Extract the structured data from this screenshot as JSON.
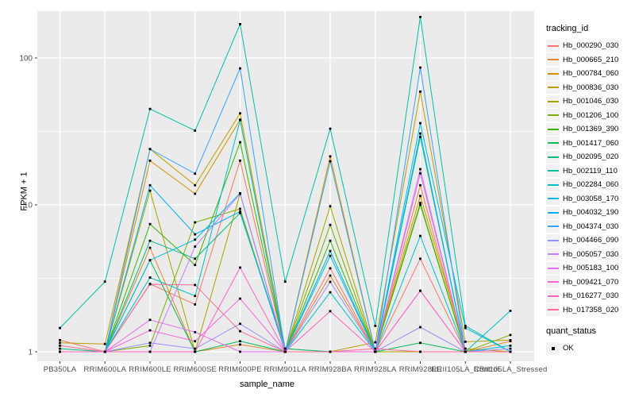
{
  "chart_data": {
    "type": "line",
    "title": "",
    "xlabel": "sample_name",
    "ylabel": "FPKM + 1",
    "y_scale": "log10",
    "y_ticks": [
      1,
      10,
      100
    ],
    "y_minor_ticks": [
      3.162,
      31.62
    ],
    "ylim": [
      0.88,
      208
    ],
    "grid": true,
    "panel_background": "#EBEBEB",
    "grid_color": "#FFFFFF",
    "point_shape": "filled-square",
    "point_color": "#000000",
    "tick_label_color": "#4D4D4D",
    "legend_position": "right",
    "categories": [
      "PB350LA",
      "RRIM600LA",
      "RRIM600LE",
      "RRIM600SE",
      "RRIM600PE",
      "RRIM901LA",
      "RRIM928BA",
      "RRIM928LA",
      "RRIM928LE",
      "RRII105LA_Control",
      "RRII105LA_Stressed"
    ],
    "series": [
      {
        "name": "Hb_000290_030",
        "color": "#F8766D",
        "values": [
          1.2,
          1,
          2.9,
          2.1,
          20,
          1,
          3.7,
          1,
          4.3,
          1,
          1
        ]
      },
      {
        "name": "Hb_000665_210",
        "color": "#EA8331",
        "values": [
          1,
          1,
          5.1,
          1,
          1.12,
          1,
          3.3,
          1,
          13.6,
          1,
          1.18
        ]
      },
      {
        "name": "Hb_000784_060",
        "color": "#D89000",
        "values": [
          1,
          1,
          20,
          11.9,
          38,
          1,
          21.4,
          1,
          11.5,
          1.05,
          1
        ]
      },
      {
        "name": "Hb_000836_030",
        "color": "#C09B00",
        "values": [
          1.15,
          1.13,
          24,
          13.6,
          42,
          1.05,
          1,
          1.16,
          59,
          1.17,
          1.2
        ]
      },
      {
        "name": "Hb_001046_030",
        "color": "#A3A500",
        "values": [
          1,
          1,
          12.5,
          1,
          11.9,
          1,
          9.8,
          1,
          1,
          1,
          1
        ]
      },
      {
        "name": "Hb_001206_100",
        "color": "#7CAE00",
        "values": [
          1,
          1,
          1.1,
          7.6,
          9.4,
          1,
          7.3,
          1,
          10.3,
          1,
          1.3
        ]
      },
      {
        "name": "Hb_001369_390",
        "color": "#39B600",
        "values": [
          1,
          1,
          7.4,
          3.9,
          26.7,
          1,
          5.7,
          1,
          10,
          1,
          1
        ]
      },
      {
        "name": "Hb_001417_060",
        "color": "#00BB4E",
        "values": [
          1,
          1,
          4.2,
          1,
          1.18,
          1,
          1,
          1,
          1.15,
          1,
          1
        ]
      },
      {
        "name": "Hb_002095_020",
        "color": "#00BF7D",
        "values": [
          1.05,
          1,
          5.7,
          4.3,
          8.8,
          1.05,
          1,
          1,
          29,
          1,
          1
        ]
      },
      {
        "name": "Hb_002119_110",
        "color": "#00C1A3",
        "values": [
          1.45,
          3,
          45,
          32,
          170,
          3,
          33,
          1.5,
          190,
          1.5,
          1
        ]
      },
      {
        "name": "Hb_002284_060",
        "color": "#00BFC4",
        "values": [
          1,
          1,
          3.2,
          2.4,
          37.8,
          1,
          2.54,
          1,
          6.15,
          1,
          1.9
        ]
      },
      {
        "name": "Hb_003058_170",
        "color": "#00BAE0",
        "values": [
          1,
          1,
          4.2,
          5.8,
          12,
          1,
          4.5,
          1,
          36,
          1.45,
          1
        ]
      },
      {
        "name": "Hb_004032_190",
        "color": "#00B0F6",
        "values": [
          1,
          1,
          13.6,
          6.3,
          9,
          1,
          4.85,
          1,
          30.6,
          1,
          1.1
        ]
      },
      {
        "name": "Hb_004374_030",
        "color": "#35A2FF",
        "values": [
          1,
          1,
          24,
          16.3,
          85,
          1,
          19.8,
          1,
          86,
          1,
          1
        ]
      },
      {
        "name": "Hb_004466_090",
        "color": "#9590FF",
        "values": [
          1,
          1,
          1.15,
          1.05,
          1.55,
          1,
          2.99,
          1,
          1.47,
          1,
          1.05
        ]
      },
      {
        "name": "Hb_005057_030",
        "color": "#C77CFF",
        "values": [
          1,
          1,
          1,
          5.2,
          11.9,
          1,
          1,
          1,
          17.5,
          1,
          1
        ]
      },
      {
        "name": "Hb_005183_100",
        "color": "#E76BF3",
        "values": [
          1,
          1,
          1.65,
          1.36,
          1,
          1,
          1,
          1,
          16.4,
          1,
          1
        ]
      },
      {
        "name": "Hb_009421_070",
        "color": "#FA62DB",
        "values": [
          1,
          1,
          1.4,
          1.18,
          2.3,
          1,
          1,
          1,
          2.6,
          1,
          1
        ]
      },
      {
        "name": "Hb_016277_030",
        "color": "#FF62BC",
        "values": [
          1,
          1,
          1,
          1,
          3.74,
          1,
          1.89,
          1,
          2.6,
          1,
          1
        ]
      },
      {
        "name": "Hb_017358_020",
        "color": "#FF6A98",
        "values": [
          1.1,
          1,
          2.88,
          2.85,
          1.38,
          1,
          1,
          1.05,
          1,
          1,
          1
        ]
      }
    ]
  },
  "legend": {
    "tracking_title": "tracking_id",
    "quant_title": "quant_status",
    "quant_label": "OK",
    "key_background": "#F2F2F2"
  }
}
